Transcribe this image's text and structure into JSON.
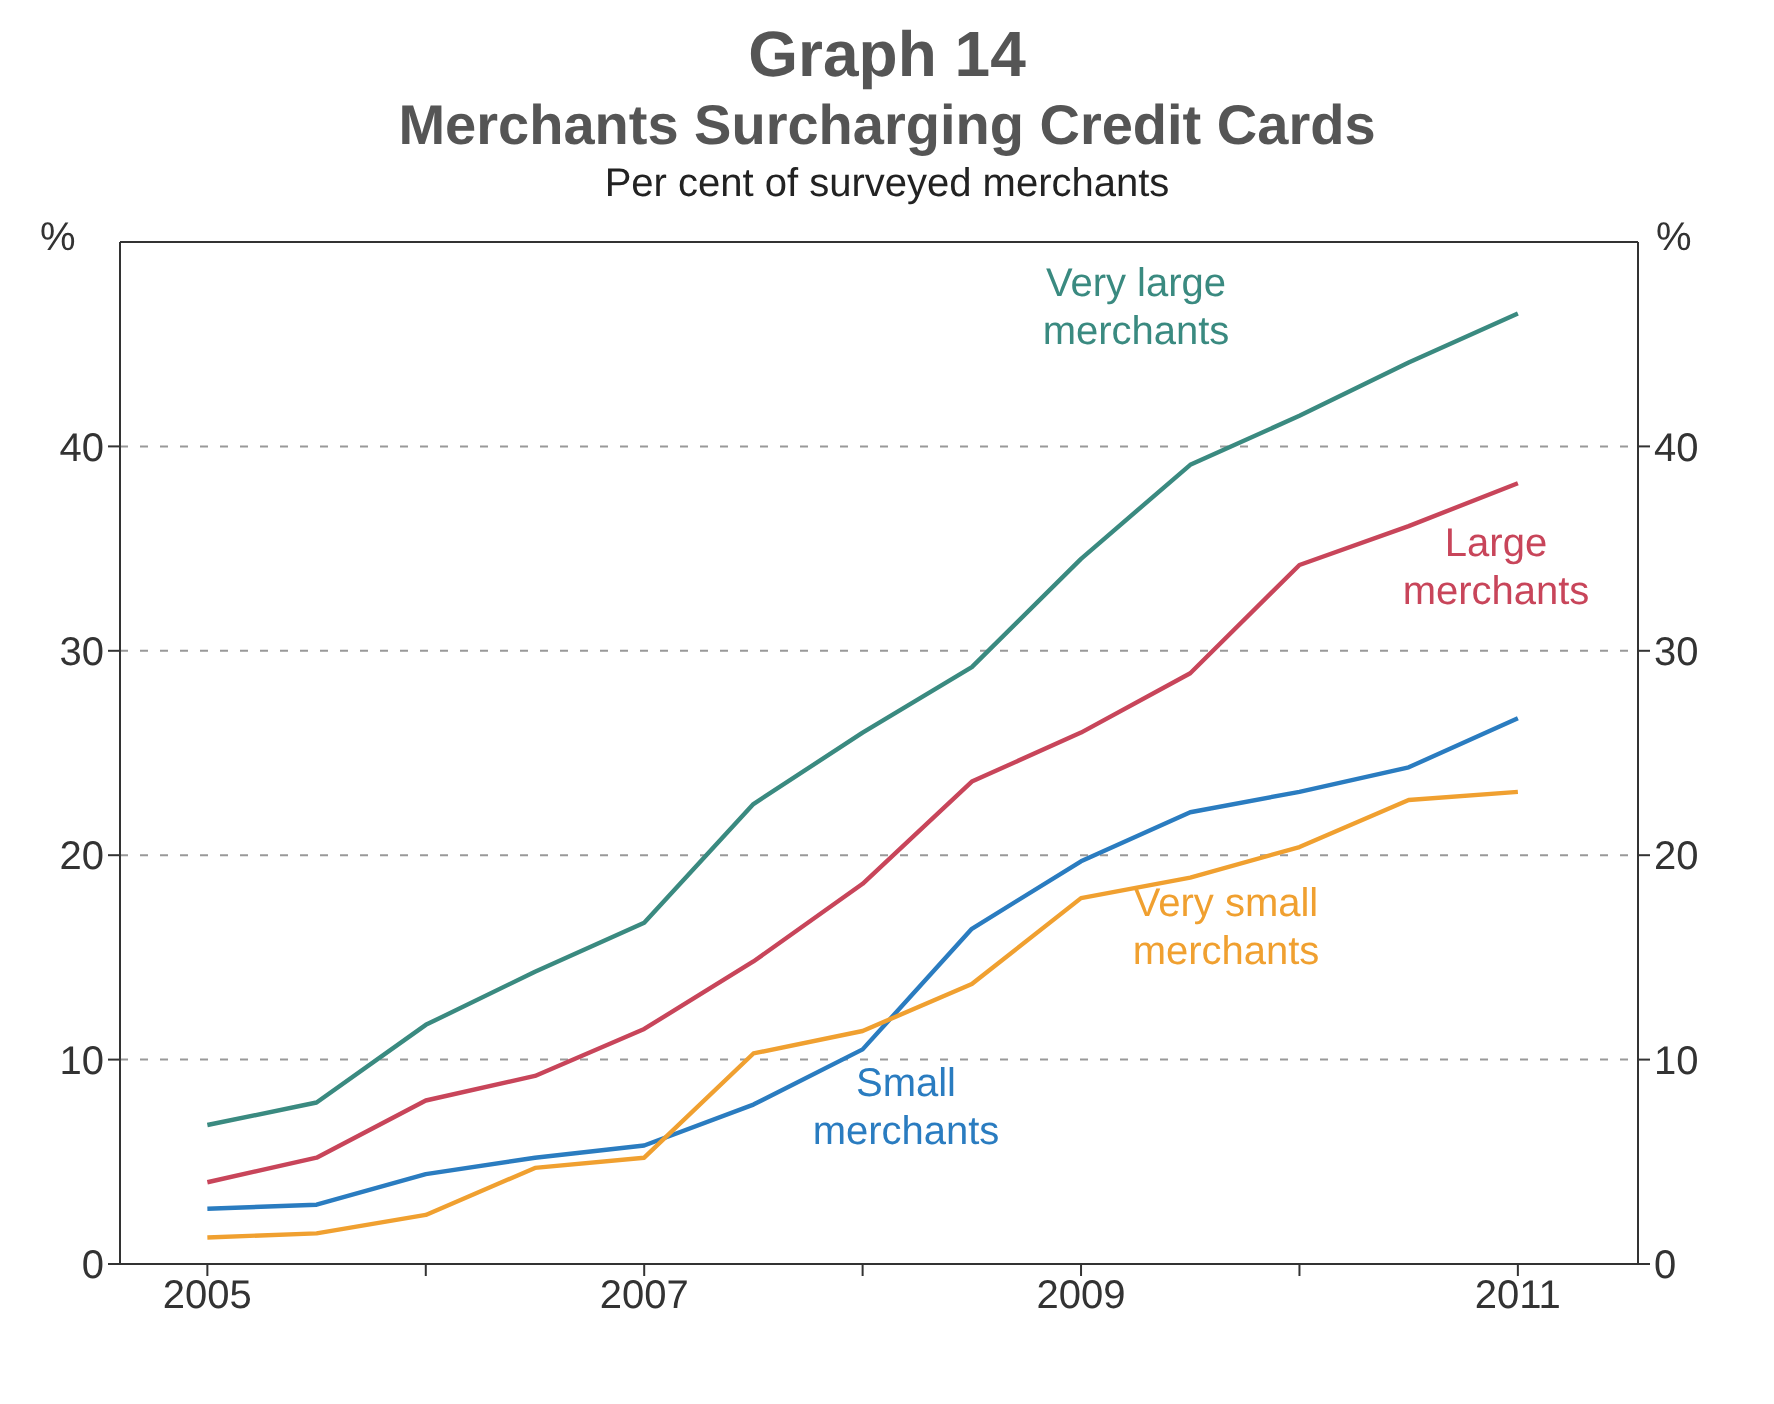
{
  "chart_data": {
    "type": "line",
    "title": "Graph 14\nMerchants Surcharging Credit Cards",
    "subtitle": "Per cent of surveyed merchants",
    "ylabel": "%",
    "y2label": "%",
    "x": [
      2005,
      2005.5,
      2006,
      2006.5,
      2007,
      2007.5,
      2008,
      2008.5,
      2009,
      2009.5,
      2010,
      2010.5,
      2011
    ],
    "series": [
      {
        "name": "Very large\nmerchants",
        "color": "#3a8a80",
        "values": [
          6.8,
          7.9,
          11.7,
          14.3,
          16.7,
          22.5,
          26,
          29.2,
          34.5,
          39.1,
          41.5,
          44.1,
          46.5
        ]
      },
      {
        "name": "Large\nmerchants",
        "color": "#c8455a",
        "values": [
          4.0,
          5.2,
          8.0,
          9.2,
          11.5,
          14.8,
          18.6,
          23.6,
          26,
          28.9,
          34.2,
          36.1,
          38.2
        ]
      },
      {
        "name": "Small\nmerchants",
        "color": "#2a7cc0",
        "values": [
          2.7,
          2.9,
          4.4,
          5.2,
          5.8,
          7.8,
          10.5,
          16.4,
          19.7,
          22.1,
          23.1,
          24.3,
          26.7
        ]
      },
      {
        "name": "Very small\nmerchants",
        "color": "#f0a030",
        "values": [
          1.3,
          1.5,
          2.4,
          4.7,
          5.2,
          10.3,
          11.4,
          13.7,
          17.9,
          18.9,
          20.4,
          22.7,
          23.1
        ]
      }
    ],
    "xlim": [
      2004.6,
      2011.55
    ],
    "xticks": [
      2005,
      {
        "value": 2006,
        "label": null
      },
      2007,
      {
        "value": 2008,
        "label": null
      },
      2009,
      {
        "value": 2010,
        "label": null
      },
      2011
    ],
    "ylim": [
      0,
      50
    ],
    "yticks": [
      0,
      10,
      20,
      30,
      40
    ],
    "y2lim": [
      0,
      50
    ],
    "y2ticks": [
      0,
      10,
      20,
      30,
      40
    ],
    "grid": "y",
    "legend": false,
    "marker": "none",
    "line_style": "solid"
  }
}
